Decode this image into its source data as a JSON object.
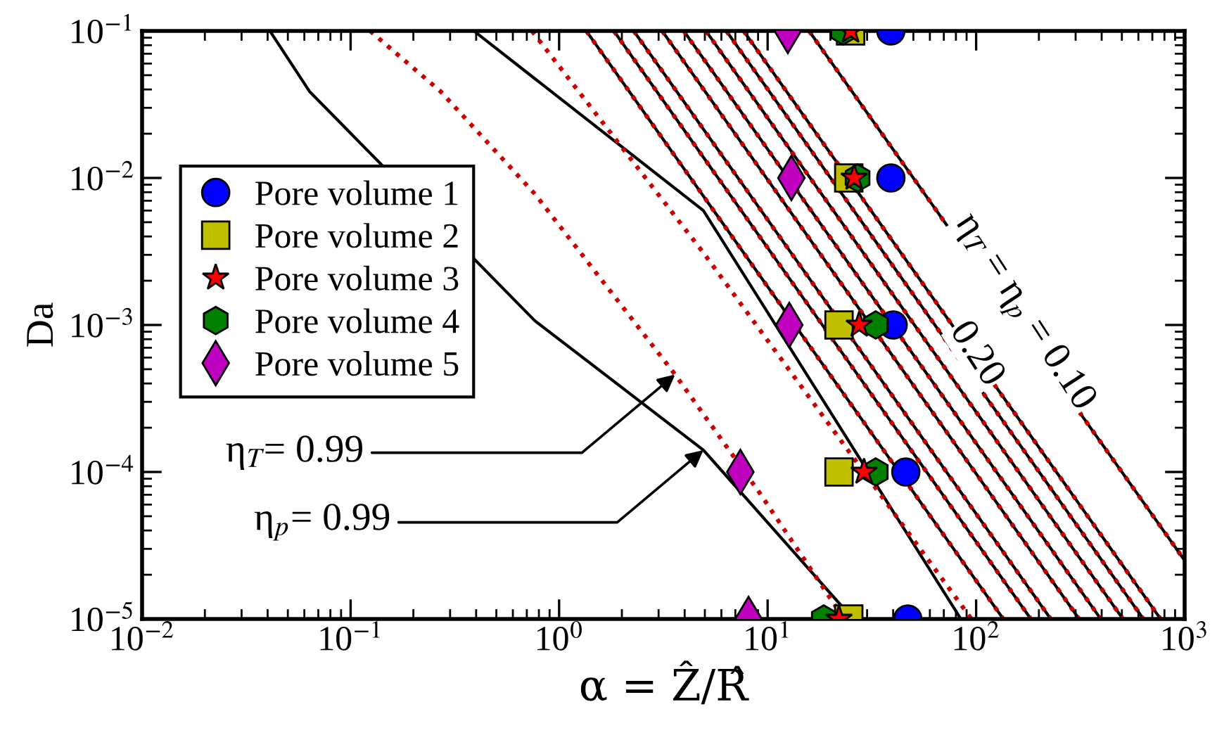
{
  "chart_data": {
    "type": "scatter",
    "xlabel": "α = Ẑ/R̂",
    "ylabel": "Da",
    "log": "xy",
    "grid": false,
    "legend": "top left",
    "xlim": [
      0.01,
      1000
    ],
    "ylim": [
      1e-05,
      0.1
    ],
    "xticks": [
      {
        "value": 0.01,
        "label": "10$^{−2}$"
      },
      {
        "value": 0.1,
        "label": "10$^{−1}$"
      },
      {
        "value": 1,
        "label": "10$^{0}$"
      },
      {
        "value": 10,
        "label": "10$^{1}$"
      },
      {
        "value": 100,
        "label": "10$^{2}$"
      },
      {
        "value": 1000,
        "label": "10$^{3}$"
      }
    ],
    "yticks": [
      {
        "value": 1e-05,
        "label": "10$^{−5}$"
      },
      {
        "value": 0.0001,
        "label": "10$^{−4}$"
      },
      {
        "value": 0.001,
        "label": "10$^{−3}$"
      },
      {
        "value": 0.01,
        "label": "10$^{−2}$"
      },
      {
        "value": 0.1,
        "label": "10$^{−1}$"
      }
    ],
    "series": [
      {
        "type": "line",
        "color": "#000000",
        "line_style": "solid",
        "marker": "none",
        "x": [
          0.041,
          0.0635,
          0.764,
          4.92,
          23.3,
          25.9
        ],
        "values": [
          0.1,
          0.0388,
          0.00107,
          0.000141,
          1.17e-05,
          1e-05
        ]
      },
      {
        "type": "line",
        "color": "#cc0000",
        "line_style": "dotted",
        "marker": "none",
        "x": [
          0.124,
          0.27,
          0.764,
          3.6,
          9.16,
          23.3
        ],
        "values": [
          0.1,
          0.0388,
          0.0078,
          0.00046,
          7.2e-05,
          1e-05
        ]
      },
      {
        "type": "line",
        "color": "#000000",
        "line_style": "solid",
        "marker": "none",
        "x": [
          0.39,
          4.92,
          84.5
        ],
        "values": [
          0.1,
          0.006,
          1e-05
        ]
      },
      {
        "type": "line",
        "color": "#cc0000",
        "line_style": "dotted",
        "marker": "none",
        "x": [
          0.74,
          4.92,
          95
        ],
        "values": [
          0.1,
          0.0031,
          1e-05
        ]
      },
      {
        "type": "line",
        "color": "#000000",
        "line_style": "solid",
        "marker": "none",
        "x": [
          1.35,
          135
        ],
        "values": [
          0.1,
          1e-05
        ]
      },
      {
        "type": "line",
        "color": "#000000",
        "line_style": "solid",
        "marker": "none",
        "x": [
          1.83,
          183
        ],
        "values": [
          0.1,
          1e-05
        ]
      },
      {
        "type": "line",
        "color": "#000000",
        "line_style": "solid",
        "marker": "none",
        "x": [
          2.28,
          228
        ],
        "values": [
          0.1,
          1e-05
        ]
      },
      {
        "type": "line",
        "color": "#000000",
        "line_style": "solid",
        "marker": "none",
        "x": [
          3.12,
          312
        ],
        "values": [
          0.1,
          1e-05
        ]
      },
      {
        "type": "line",
        "color": "#000000",
        "line_style": "solid",
        "marker": "none",
        "x": [
          3.96,
          396
        ],
        "values": [
          0.1,
          1e-05
        ]
      },
      {
        "type": "line",
        "color": "#000000",
        "line_style": "solid",
        "marker": "none",
        "x": [
          5.06,
          506
        ],
        "values": [
          0.1,
          1e-05
        ]
      },
      {
        "type": "line",
        "color": "#000000",
        "line_style": "solid",
        "marker": "none",
        "x": [
          6.34,
          634
        ],
        "values": [
          0.1,
          1e-05
        ]
      },
      {
        "type": "line",
        "color": "#000000",
        "line_style": "solid",
        "marker": "none",
        "x": [
          7.67,
          767
        ],
        "values": [
          0.1,
          1e-05
        ]
      },
      {
        "type": "line",
        "color": "#000000",
        "line_style": "solid",
        "marker": "none",
        "x": [
          15.8,
          1000
        ],
        "values": [
          0.1,
          2.5e-05
        ]
      },
      {
        "type": "line",
        "color": "#cc0000",
        "line_style": "dotted",
        "marker": "none",
        "x": [
          1.35,
          135
        ],
        "values": [
          0.1,
          1e-05
        ]
      },
      {
        "type": "line",
        "color": "#cc0000",
        "line_style": "dotted",
        "marker": "none",
        "x": [
          1.83,
          183
        ],
        "values": [
          0.1,
          1e-05
        ]
      },
      {
        "type": "line",
        "color": "#cc0000",
        "line_style": "dotted",
        "marker": "none",
        "x": [
          2.28,
          228
        ],
        "values": [
          0.1,
          1e-05
        ]
      },
      {
        "type": "line",
        "color": "#cc0000",
        "line_style": "dotted",
        "marker": "none",
        "x": [
          3.12,
          312
        ],
        "values": [
          0.1,
          1e-05
        ]
      },
      {
        "type": "line",
        "color": "#cc0000",
        "line_style": "dotted",
        "marker": "none",
        "x": [
          3.96,
          396
        ],
        "values": [
          0.1,
          1e-05
        ]
      },
      {
        "type": "line",
        "color": "#cc0000",
        "line_style": "dotted",
        "marker": "none",
        "x": [
          5.06,
          506
        ],
        "values": [
          0.1,
          1e-05
        ]
      },
      {
        "type": "line",
        "color": "#cc0000",
        "line_style": "dotted",
        "marker": "none",
        "x": [
          6.34,
          634
        ],
        "values": [
          0.1,
          1e-05
        ]
      },
      {
        "type": "line",
        "color": "#cc0000",
        "line_style": "dotted",
        "marker": "none",
        "x": [
          7.67,
          767
        ],
        "values": [
          0.1,
          1e-05
        ]
      },
      {
        "type": "line",
        "color": "#cc0000",
        "line_style": "dotted",
        "marker": "none",
        "x": [
          15.8,
          1000
        ],
        "values": [
          0.1,
          2.5e-05
        ]
      },
      {
        "name": "Pore volume 1",
        "color": "#0000ff",
        "marker": "circle",
        "x": [
          39,
          39,
          40,
          46,
          47
        ],
        "values": [
          0.1,
          0.01,
          0.001,
          0.0001,
          1e-05
        ]
      },
      {
        "name": "Pore volume 2",
        "color": "#bfbf00",
        "marker": "square",
        "x": [
          25,
          24.5,
          22,
          22,
          24.5
        ],
        "values": [
          0.1,
          0.01,
          0.001,
          0.0001,
          1e-05
        ]
      },
      {
        "name": "Pore volume 3",
        "color": "#ff0000",
        "marker": "star",
        "x": [
          25,
          26,
          27.5,
          29,
          22
        ],
        "values": [
          0.1,
          0.01,
          0.001,
          0.0001,
          1e-05
        ]
      },
      {
        "name": "Pore volume 4",
        "color": "#007f00",
        "x": [
          23,
          27,
          33,
          33,
          18.6
        ],
        "values": [
          0.1,
          0.01,
          0.001,
          0.0001,
          1e-05
        ]
      },
      {
        "name": "Pore volume 5",
        "color": "#bf00bf",
        "marker": "diamond",
        "x": [
          12.5,
          13,
          12.7,
          7.4,
          8.1
        ],
        "values": [
          0.1,
          0.01,
          0.001,
          0.0001,
          1e-05
        ]
      }
    ],
    "annotations": [
      {
        "text": "η$_{T}$= 0.99",
        "x": 3.6,
        "y": 0.00046
      },
      {
        "text": "η$_{p}$= 0.99",
        "x": 4.92,
        "y": 0.000141
      },
      "η$_{T}$ = η$_{p}$ = 0.10",
      "0.20"
    ]
  }
}
